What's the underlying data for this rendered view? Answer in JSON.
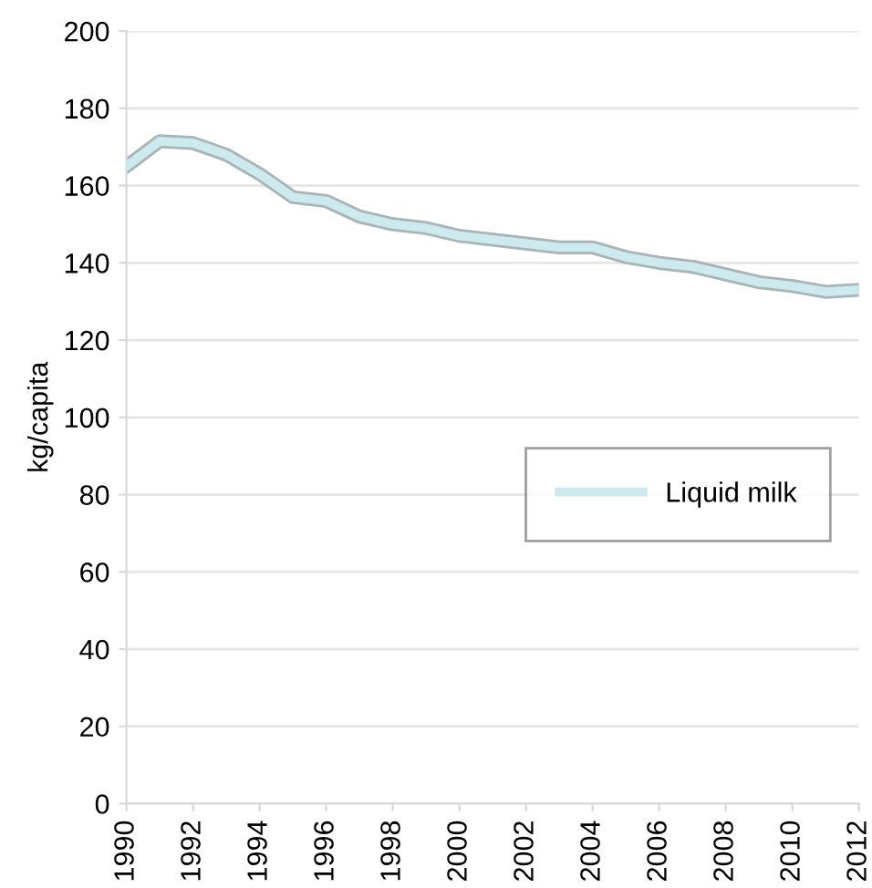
{
  "chart_data": {
    "type": "line",
    "ylabel": "kg/capita",
    "x": [
      1990,
      1991,
      1992,
      1993,
      1994,
      1995,
      1996,
      1997,
      1998,
      1999,
      2000,
      2001,
      2002,
      2003,
      2004,
      2005,
      2006,
      2007,
      2008,
      2009,
      2010,
      2011,
      2012
    ],
    "series": [
      {
        "name": "Liquid milk",
        "color": "#cdeaee",
        "values": [
          165,
          171.5,
          171,
          168,
          163,
          157,
          156,
          152,
          150,
          149,
          147,
          146,
          145,
          144,
          144,
          141.5,
          140,
          139,
          137,
          135,
          134,
          132.5,
          133
        ]
      }
    ],
    "xlim": [
      1990,
      2012
    ],
    "xticks": [
      1990,
      1992,
      1994,
      1996,
      1998,
      2000,
      2002,
      2004,
      2006,
      2008,
      2010,
      2012
    ],
    "ylim": [
      0,
      200
    ],
    "yticks": [
      0,
      20,
      40,
      60,
      80,
      100,
      120,
      140,
      160,
      180,
      200
    ],
    "grid": "y",
    "legend": "right",
    "marker": "none",
    "line_style": "solid"
  }
}
